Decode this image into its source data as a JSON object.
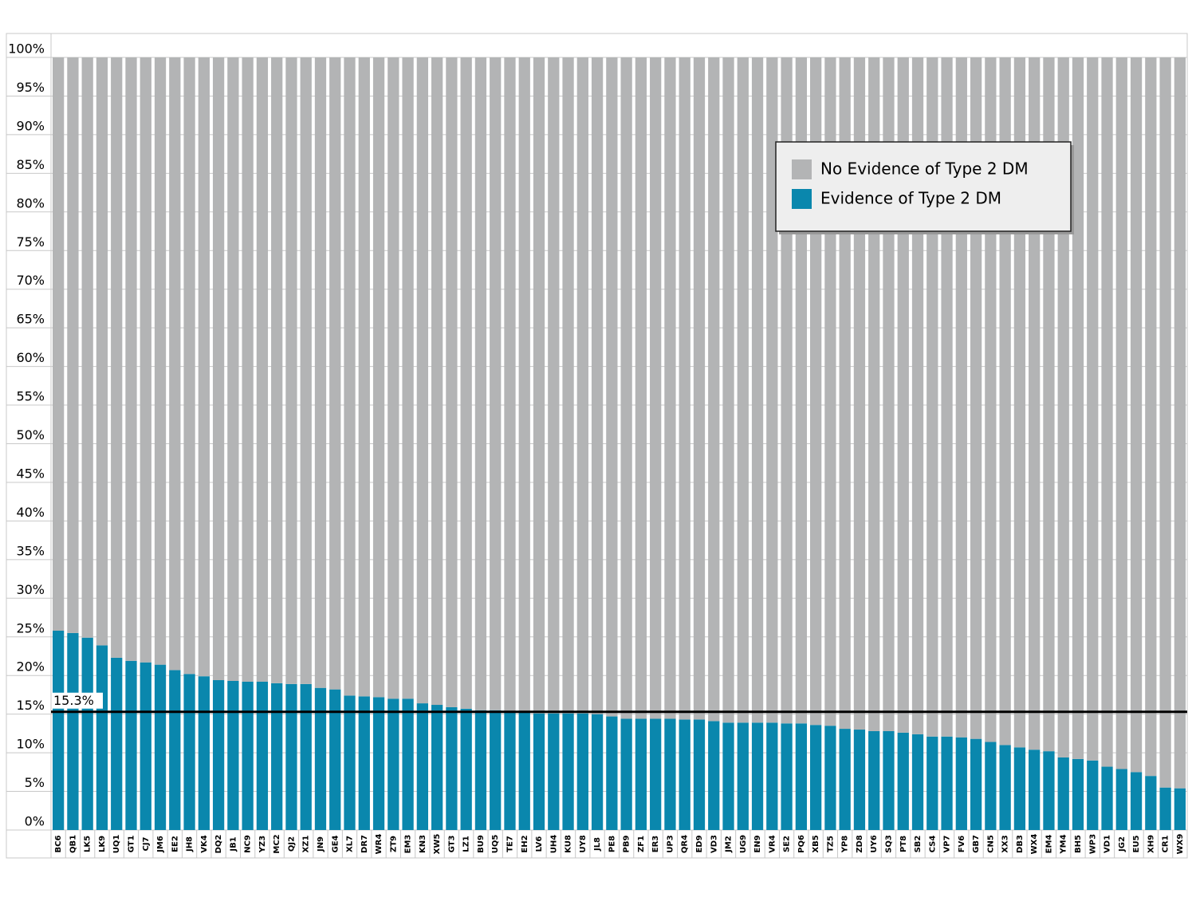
{
  "chart_data": {
    "type": "stacked_bar",
    "categories": [
      "BC6",
      "QB1",
      "LK5",
      "LK9",
      "UQ1",
      "GT1",
      "CJ7",
      "JM6",
      "EE2",
      "JH8",
      "VK4",
      "DQ2",
      "JB1",
      "NC9",
      "YZ3",
      "MC2",
      "QJ2",
      "XZ1",
      "JN9",
      "GE4",
      "XL7",
      "DR7",
      "WR4",
      "ZT9",
      "EM3",
      "KN3",
      "XW5",
      "GT3",
      "LZ1",
      "BU9",
      "UQ5",
      "TE7",
      "EH2",
      "LV6",
      "UH4",
      "KU8",
      "UY8",
      "JL8",
      "PE8",
      "PB9",
      "ZF1",
      "ER3",
      "UP3",
      "QR4",
      "ED9",
      "VD3",
      "JM2",
      "UG9",
      "EN9",
      "VR4",
      "SE2",
      "PQ6",
      "XB5",
      "TZ5",
      "YP8",
      "ZD8",
      "UY6",
      "SQ3",
      "PT8",
      "SB2",
      "CS4",
      "VP7",
      "FV6",
      "GB7",
      "CN5",
      "XX3",
      "DB3",
      "WX4",
      "EM4",
      "YM4",
      "BH5",
      "WP3",
      "VD1",
      "JG2",
      "EU5",
      "XH9",
      "CR1",
      "WX9"
    ],
    "series": [
      {
        "name": "Evidence of Type 2 DM",
        "color": "#0a87ad",
        "values": [
          25.8,
          25.5,
          24.9,
          23.9,
          22.3,
          21.9,
          21.7,
          21.4,
          20.7,
          20.2,
          19.9,
          19.4,
          19.3,
          19.2,
          19.2,
          19.0,
          18.9,
          18.9,
          18.4,
          18.2,
          17.4,
          17.3,
          17.2,
          17.0,
          17.0,
          16.4,
          16.2,
          15.9,
          15.7,
          15.5,
          15.5,
          15.4,
          15.3,
          15.1,
          15.1,
          15.1,
          15.1,
          15.0,
          14.7,
          14.4,
          14.4,
          14.4,
          14.4,
          14.3,
          14.3,
          14.1,
          13.9,
          13.9,
          13.9,
          13.9,
          13.8,
          13.8,
          13.6,
          13.5,
          13.1,
          13.0,
          12.8,
          12.8,
          12.6,
          12.4,
          12.1,
          12.1,
          12.0,
          11.8,
          11.4,
          11.0,
          10.7,
          10.4,
          10.2,
          9.4,
          9.2,
          9.0,
          8.2,
          7.9,
          7.5,
          7.0,
          5.5,
          5.4
        ]
      },
      {
        "name": "No Evidence of Type 2 DM",
        "color": "#b3b4b5",
        "values": [
          74.2,
          74.5,
          75.1,
          76.1,
          77.7,
          78.1,
          78.3,
          78.6,
          79.3,
          79.8,
          80.1,
          80.6,
          80.7,
          80.8,
          80.8,
          81.0,
          81.1,
          81.1,
          81.6,
          81.8,
          82.6,
          82.7,
          82.8,
          83.0,
          83.0,
          83.6,
          83.8,
          84.1,
          84.3,
          84.5,
          84.5,
          84.6,
          84.7,
          84.9,
          84.9,
          84.9,
          84.9,
          85.0,
          85.3,
          85.6,
          85.6,
          85.6,
          85.6,
          85.7,
          85.7,
          85.9,
          86.1,
          86.1,
          86.1,
          86.1,
          86.2,
          86.2,
          86.4,
          86.5,
          86.9,
          87.0,
          87.2,
          87.2,
          87.4,
          87.6,
          87.9,
          87.9,
          88.0,
          88.2,
          88.6,
          89.0,
          89.3,
          89.6,
          89.8,
          90.6,
          90.8,
          91.0,
          91.8,
          92.1,
          92.5,
          93.0,
          94.5,
          94.6
        ]
      }
    ],
    "ylim": [
      0,
      100
    ],
    "yticks": [
      {
        "value": 0,
        "label": "0%"
      },
      {
        "value": 5,
        "label": "5%"
      },
      {
        "value": 10,
        "label": "10%"
      },
      {
        "value": 15,
        "label": "15%"
      },
      {
        "value": 20,
        "label": "20%"
      },
      {
        "value": 25,
        "label": "25%"
      },
      {
        "value": 30,
        "label": "30%"
      },
      {
        "value": 35,
        "label": "35%"
      },
      {
        "value": 40,
        "label": "40%"
      },
      {
        "value": 45,
        "label": "45%"
      },
      {
        "value": 50,
        "label": "50%"
      },
      {
        "value": 55,
        "label": "55%"
      },
      {
        "value": 60,
        "label": "60%"
      },
      {
        "value": 65,
        "label": "65%"
      },
      {
        "value": 70,
        "label": "70%"
      },
      {
        "value": 75,
        "label": "75%"
      },
      {
        "value": 80,
        "label": "80%"
      },
      {
        "value": 85,
        "label": "85%"
      },
      {
        "value": 90,
        "label": "90%"
      },
      {
        "value": 95,
        "label": "95%"
      },
      {
        "value": 100,
        "label": "100%"
      }
    ],
    "reference_line": {
      "value": 15.3,
      "label": "15.3%"
    },
    "grid": true,
    "legend": "upper right"
  }
}
